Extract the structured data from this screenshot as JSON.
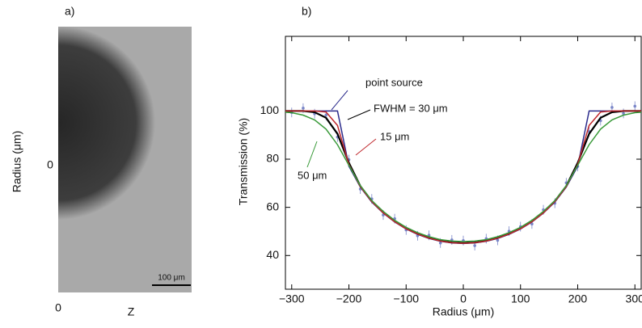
{
  "panel_a": {
    "label": "a)",
    "y_axis_label": "Radius (μm)",
    "y_zero": "0",
    "x_zero": "0",
    "x_axis_label": "Z",
    "scale_bar": "100 μm"
  },
  "chart_data": {
    "type": "line",
    "label": "b)",
    "x_label": "Radius (μm)",
    "y_label": "Transmission (%)",
    "x": [
      -320,
      -300,
      -280,
      -260,
      -240,
      -220,
      -200,
      -180,
      -160,
      -140,
      -120,
      -100,
      -80,
      -60,
      -40,
      -20,
      0,
      20,
      40,
      60,
      80,
      100,
      120,
      140,
      160,
      180,
      200,
      220,
      240,
      260,
      280,
      300,
      320
    ],
    "series": [
      {
        "name": "point source",
        "color": "#2b2b8c",
        "values": [
          100,
          100,
          100,
          100,
          100,
          100,
          77.1,
          68.4,
          62.2,
          57.6,
          53.9,
          51.0,
          48.8,
          47.1,
          45.9,
          45.2,
          45,
          45.2,
          45.9,
          47.1,
          48.8,
          51.0,
          53.9,
          57.6,
          62.2,
          68.4,
          77.1,
          100,
          100,
          100,
          100,
          100,
          100
        ]
      },
      {
        "name": "FWHM = 30 μm",
        "color": "#000000",
        "values": [
          100,
          100,
          100,
          99.5,
          97.2,
          90.5,
          78.5,
          68.8,
          62.6,
          57.9,
          54.2,
          51.3,
          49.0,
          47.3,
          46.1,
          45.4,
          45.2,
          45.4,
          46.1,
          47.3,
          49.0,
          51.3,
          54.2,
          57.9,
          62.6,
          68.8,
          78.5,
          90.5,
          97.2,
          99.5,
          100,
          100,
          100
        ]
      },
      {
        "name": "15 μm",
        "color": "#c0282d",
        "values": [
          100,
          100,
          100,
          100,
          99.6,
          94,
          77.8,
          68.6,
          62.4,
          57.7,
          54.0,
          51.1,
          48.9,
          47.2,
          46.0,
          45.3,
          45.1,
          45.3,
          46.0,
          47.2,
          48.9,
          51.1,
          54.0,
          57.7,
          62.4,
          68.6,
          77.8,
          94,
          99.6,
          100,
          100,
          100,
          100
        ]
      },
      {
        "name": "50 μm",
        "color": "#3a9a3a",
        "values": [
          99.7,
          99.3,
          98.3,
          96.3,
          92.5,
          86,
          77.5,
          69,
          62.8,
          58.3,
          54.6,
          51.7,
          49.5,
          47.8,
          46.6,
          46,
          45.8,
          46,
          46.6,
          47.8,
          49.5,
          51.7,
          54.6,
          58.3,
          62.8,
          69,
          77.5,
          86,
          92.5,
          96.3,
          98.3,
          99.3,
          99.7
        ]
      }
    ],
    "measured": {
      "color": "#7a86c8",
      "values": [
        103.0,
        99.4,
        101.2,
        98.9,
        98.3,
        89.2,
        79.8,
        67.6,
        63.5,
        56.8,
        55.3,
        50.6,
        48.2,
        48.4,
        45.2,
        46.5,
        46.2,
        44.1,
        47.0,
        46.3,
        50.1,
        52.0,
        53.1,
        59.0,
        61.7,
        70.2,
        77.0,
        91.5,
        96.0,
        101.5,
        99.0,
        102.0,
        100.8
      ]
    },
    "xlim": [
      -311,
      311
    ],
    "ylim": [
      26,
      131
    ],
    "xticks": [
      {
        "value": -300,
        "label": "−300"
      },
      {
        "value": -200,
        "label": "−200"
      },
      {
        "value": -100,
        "label": "−100"
      },
      0,
      100,
      200,
      300
    ],
    "yticks": [
      40,
      60,
      80,
      100
    ]
  }
}
